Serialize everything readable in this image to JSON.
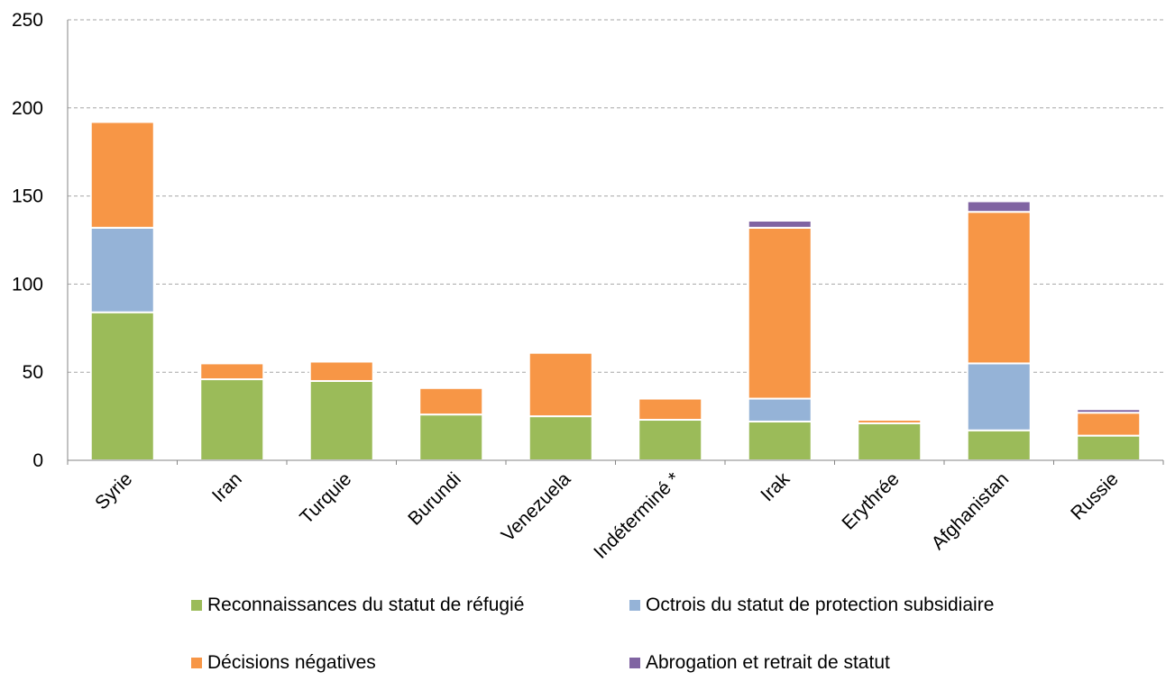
{
  "chart_data": {
    "type": "bar",
    "stacked": true,
    "categories": [
      "Syrie",
      "Iran",
      "Turquie",
      "Burundi",
      "Venezuela",
      "Indéterminé *",
      "Irak",
      "Erythrée",
      "Afghanistan",
      "Russie"
    ],
    "series": [
      {
        "name": "Reconnaissances du statut de réfugié",
        "color": "#9BBB59",
        "values": [
          84,
          46,
          45,
          26,
          25,
          23,
          22,
          21,
          17,
          14
        ]
      },
      {
        "name": "Octrois du statut de protection subsidiaire",
        "color": "#95B3D7",
        "values": [
          48,
          0,
          0,
          0,
          0,
          0,
          13,
          0,
          38,
          0
        ]
      },
      {
        "name": "Décisions négatives",
        "color": "#F79646",
        "values": [
          60,
          9,
          11,
          15,
          36,
          12,
          97,
          2,
          86,
          13
        ]
      },
      {
        "name": "Abrogation et retrait de statut",
        "color": "#8064A2",
        "values": [
          0,
          0,
          0,
          0,
          0,
          0,
          4,
          0,
          6,
          2
        ]
      }
    ],
    "ylim": [
      0,
      250
    ],
    "yticks": [
      0,
      50,
      100,
      150,
      200,
      250
    ],
    "grid": true,
    "legend_position": "bottom"
  }
}
